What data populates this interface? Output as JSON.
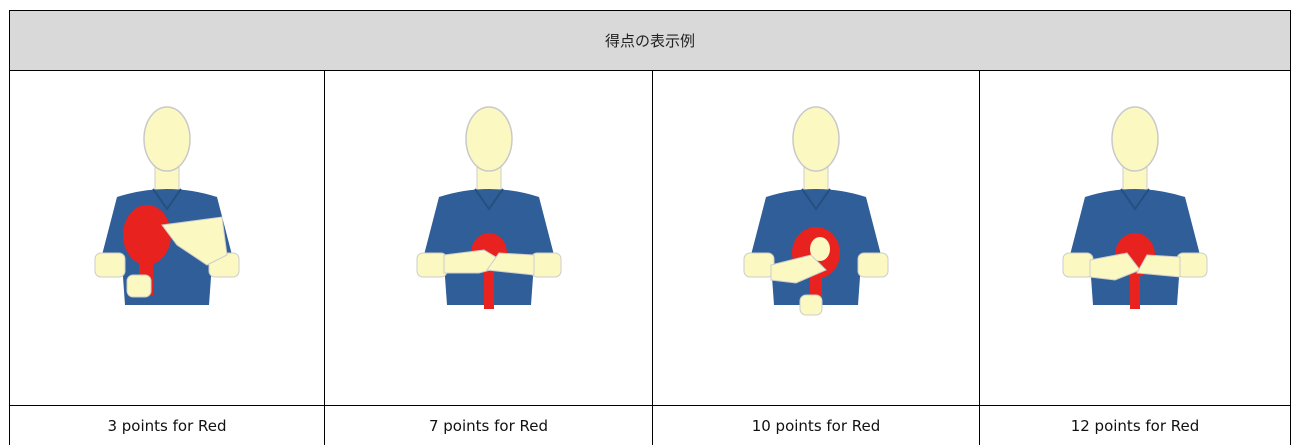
{
  "header": {
    "title": "得点の表示例"
  },
  "table": {
    "captions": [
      "3 points for Red",
      "7 points for Red",
      "10 points for Red",
      "12 points for Red"
    ]
  }
}
